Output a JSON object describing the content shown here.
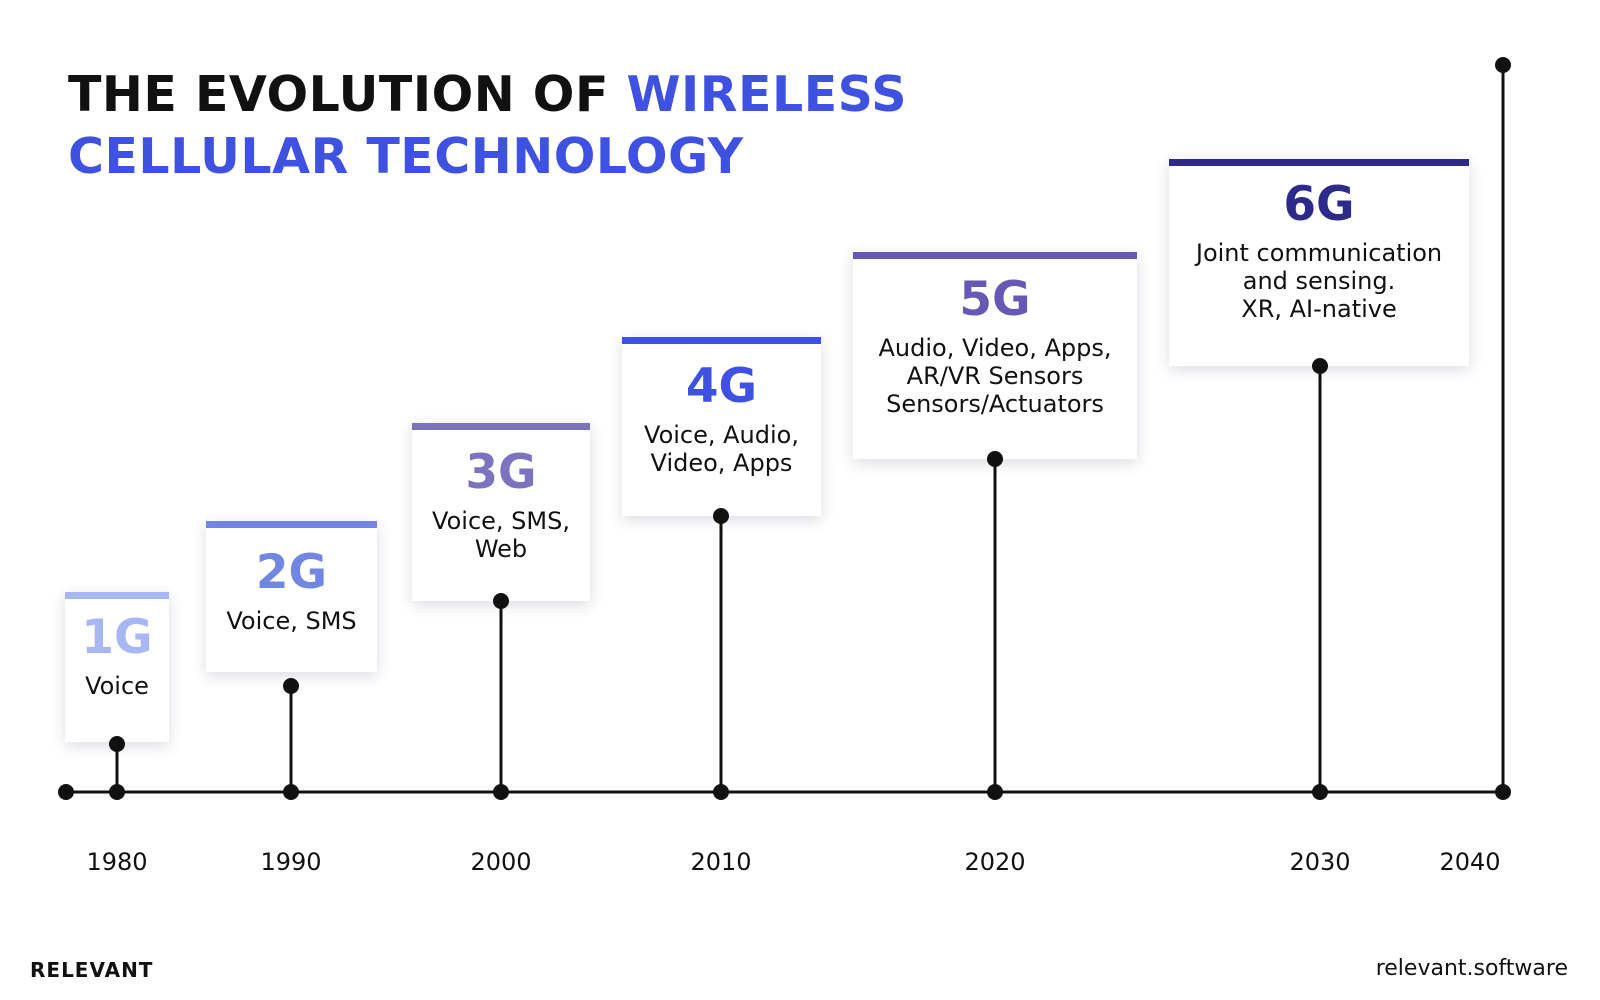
{
  "title": {
    "dark": "THE EVOLUTION OF ",
    "blue_line1": "WIRELESS",
    "blue_line2": "CELLULAR TECHNOLOGY"
  },
  "colors": {
    "title_blue": "#3f51e0",
    "1G": "#a9b6f4",
    "2G": "#7186e0",
    "3G": "#7b72c0",
    "4G": "#3f51e0",
    "5G": "#6659b4",
    "6G": "#2d2a8c"
  },
  "generations": [
    {
      "gen": "1G",
      "year": "1980",
      "lines": [
        "Voice"
      ]
    },
    {
      "gen": "2G",
      "year": "1990",
      "lines": [
        "Voice, SMS"
      ]
    },
    {
      "gen": "3G",
      "year": "2000",
      "lines": [
        "Voice, SMS,",
        "Web"
      ]
    },
    {
      "gen": "4G",
      "year": "2010",
      "lines": [
        "Voice, Audio,",
        "Video, Apps"
      ]
    },
    {
      "gen": "5G",
      "year": "2020",
      "lines": [
        "Audio, Video, Apps,",
        "AR/VR Sensors",
        "Sensors/Actuators"
      ]
    },
    {
      "gen": "6G",
      "year": "2030",
      "lines": [
        "Joint communication",
        "and sensing.",
        "XR, AI-native"
      ]
    }
  ],
  "final_year": "2040",
  "footer": {
    "brand": "RELEVANT",
    "site": "relevant.software"
  }
}
